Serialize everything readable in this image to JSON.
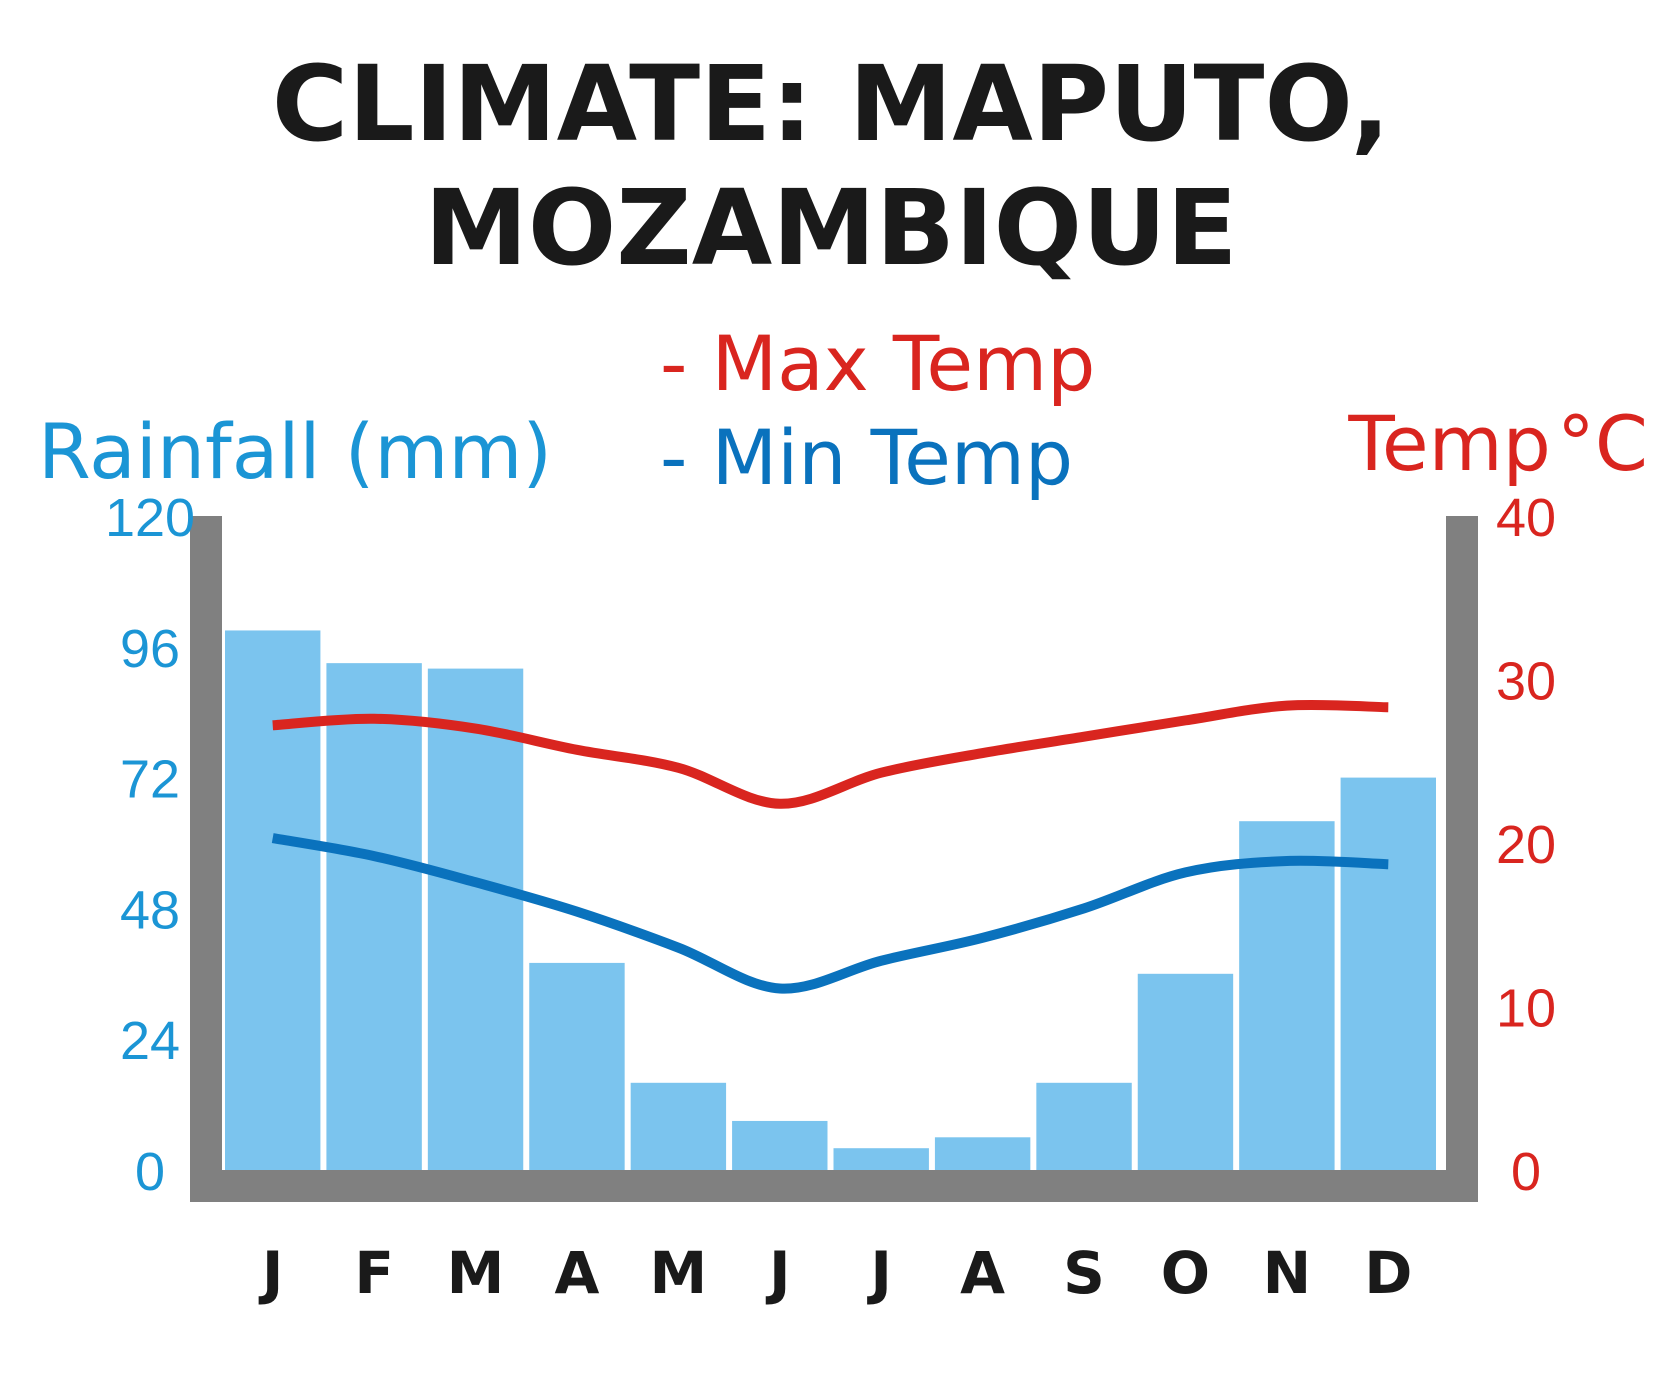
{
  "colors": {
    "rain": "#7bc4ee",
    "rain_text": "#1b95d5",
    "max": "#d9251f",
    "min": "#0a72bd",
    "axis": "#808080"
  },
  "legend": {
    "max_label": "- Max Temp",
    "min_label": "- Min Temp"
  },
  "chart_data": {
    "type": "bar",
    "title": "CLIMATE: MAPUTO, MOZAMBIQUE",
    "title_lines": [
      "CLIMATE: MAPUTO,",
      "MOZAMBIQUE"
    ],
    "categories": [
      "J",
      "F",
      "M",
      "A",
      "M",
      "J",
      "J",
      "A",
      "S",
      "O",
      "N",
      "D"
    ],
    "left_axis": {
      "label": "Rainfall (mm)",
      "range": [
        0,
        120
      ],
      "ticks": [
        "0",
        "24",
        "48",
        "72",
        "96",
        "120"
      ]
    },
    "right_axis": {
      "label": "Temp",
      "unit": "°C",
      "range": [
        0,
        40
      ],
      "ticks": [
        "0",
        "10",
        "20",
        "30",
        "40"
      ]
    },
    "series": [
      {
        "name": "Rainfall (mm)",
        "type": "bar",
        "axis": "left",
        "values": [
          99,
          93,
          92,
          38,
          16,
          9,
          4,
          6,
          16,
          36,
          64,
          72
        ]
      },
      {
        "name": "Max Temp",
        "type": "line",
        "axis": "right",
        "values": [
          27.2,
          27.6,
          27.0,
          25.7,
          24.6,
          22.4,
          24.3,
          25.5,
          26.5,
          27.5,
          28.4,
          28.3
        ]
      },
      {
        "name": "Min Temp",
        "type": "line",
        "axis": "right",
        "values": [
          20.3,
          19.2,
          17.6,
          15.8,
          13.6,
          11.1,
          12.8,
          14.2,
          16.0,
          18.2,
          18.9,
          18.7
        ]
      }
    ],
    "grid": false,
    "legend_position": "top-center"
  }
}
